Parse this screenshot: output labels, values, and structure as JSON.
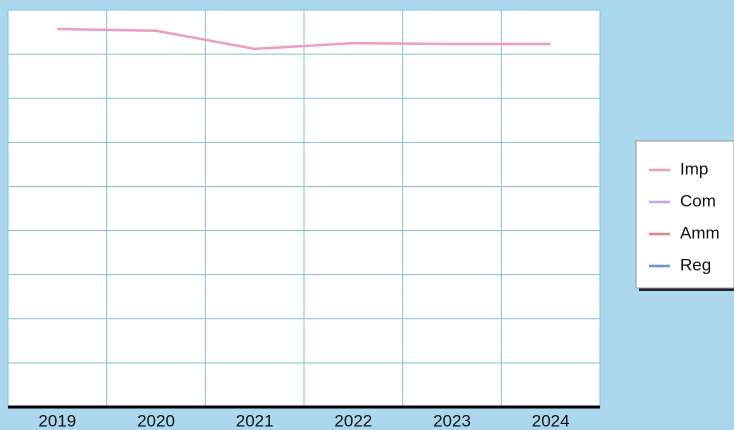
{
  "chart_data": {
    "type": "line",
    "categories": [
      "2019",
      "2020",
      "2021",
      "2022",
      "2023",
      "2024"
    ],
    "series": [
      {
        "name": "Imp",
        "color": "#f49ac2",
        "values": [
          8.57,
          8.53,
          8.12,
          8.25,
          8.23,
          8.23
        ]
      },
      {
        "name": "Com",
        "color": "#c8a2f0",
        "values": [
          null,
          null,
          null,
          null,
          null,
          null
        ]
      },
      {
        "name": "Amm",
        "color": "#f08080",
        "values": [
          null,
          null,
          null,
          null,
          null,
          null
        ]
      },
      {
        "name": "Reg",
        "color": "#6495ed",
        "values": [
          null,
          null,
          null,
          null,
          null,
          null
        ]
      }
    ],
    "ylim": [
      0,
      9
    ],
    "yticks": [
      0,
      1,
      2,
      3,
      4,
      5,
      6,
      7,
      8,
      9
    ],
    "grid": true,
    "legend": "right"
  }
}
